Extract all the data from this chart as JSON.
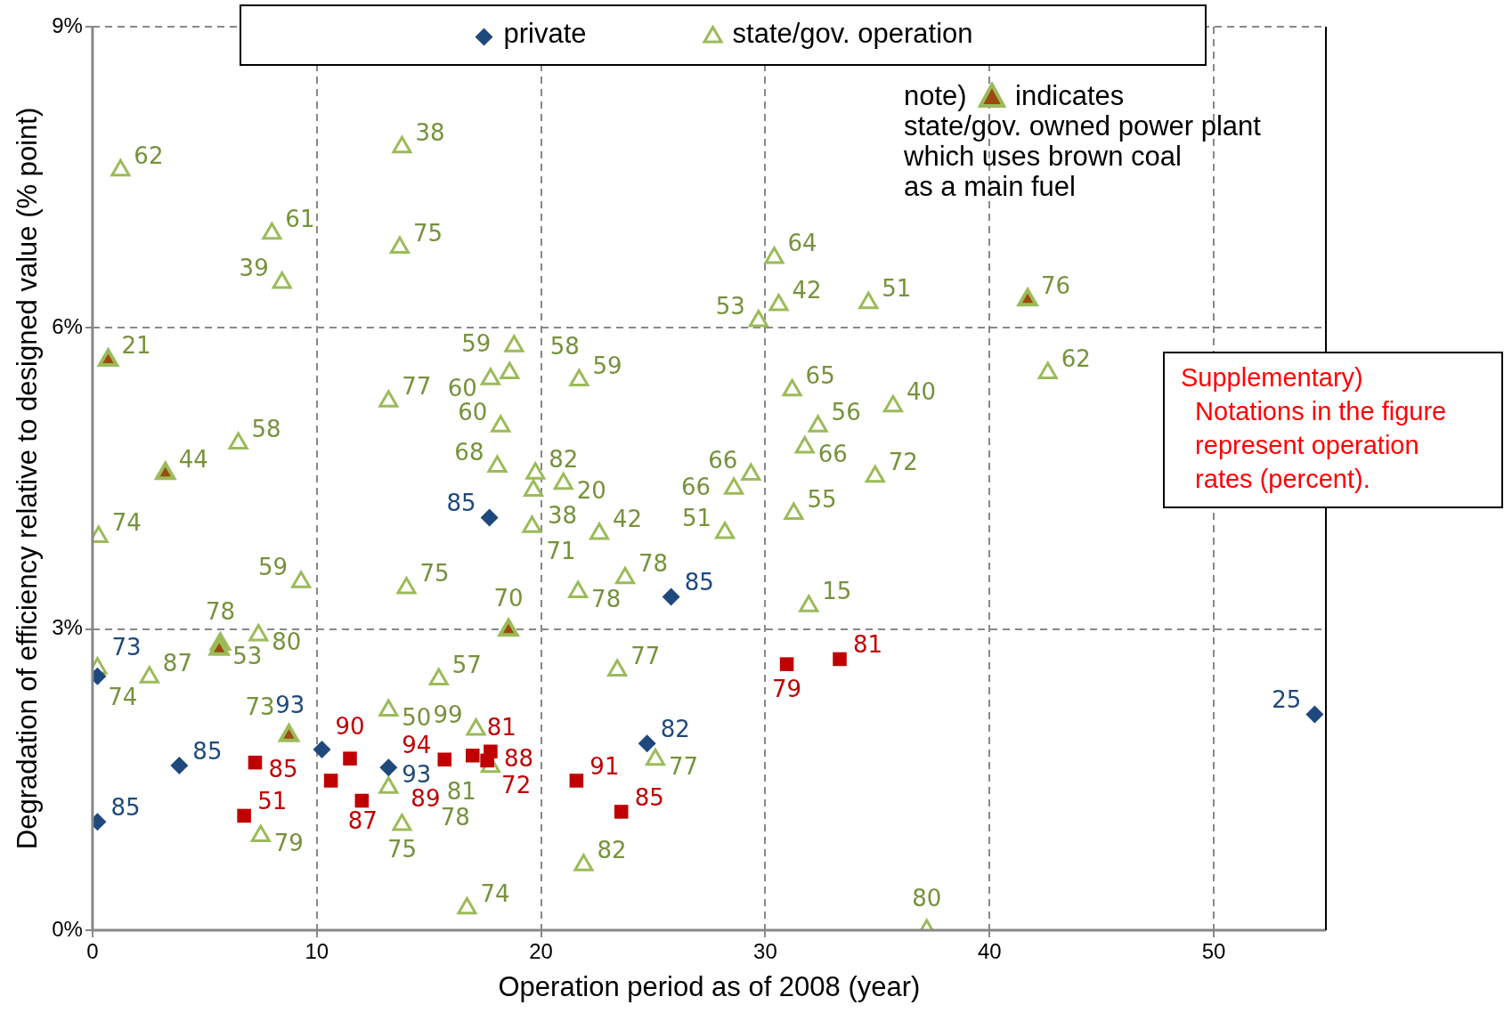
{
  "chart_data": {
    "type": "scatter",
    "xlabel": "Operation period as of 2008 (year)",
    "ylabel": "Degradation of efficiency relative to designed value (% point)",
    "xlim": [
      0,
      55
    ],
    "xticks": [
      0,
      10,
      20,
      30,
      40,
      50
    ],
    "ylim": [
      0,
      9
    ],
    "yticks": [
      {
        "value": 0,
        "label": "0%"
      },
      {
        "value": 3,
        "label": "3%"
      },
      {
        "value": 6,
        "label": "6%"
      },
      {
        "value": 9,
        "label": "9%"
      }
    ],
    "grid": true,
    "legend": "top",
    "annotations": [
      "note)",
      "indicates",
      "state/gov. owned power plant\nwhich uses brown coal\nas a main fuel",
      "Supplementary)\n  Notations in the figure\n  represent operation\n  rates (percent).",
      {
        "text": "85",
        "x": 7.25,
        "y": 1.67
      },
      {
        "text": "51",
        "x": 6.76,
        "y": 1.14
      },
      {
        "text": "87",
        "x": 10.63,
        "y": 1.49
      },
      {
        "text": "90",
        "x": 11.48,
        "y": 1.71
      },
      {
        "text": "89",
        "x": 12.01,
        "y": 1.29
      },
      {
        "text": "94",
        "x": 15.7,
        "y": 1.7
      },
      {
        "text": "81",
        "x": 16.95,
        "y": 1.74
      },
      {
        "text": "88",
        "x": 17.75,
        "y": 1.78
      },
      {
        "text": "72",
        "x": 17.6,
        "y": 1.69
      },
      {
        "text": "91",
        "x": 21.58,
        "y": 1.49
      },
      {
        "text": "85",
        "x": 23.58,
        "y": 1.18
      },
      {
        "text": "79",
        "x": 30.96,
        "y": 2.65
      },
      {
        "text": "81",
        "x": 33.32,
        "y": 2.7
      },
      {
        "text": "73",
        "x": 0.22,
        "y": 2.53
      },
      {
        "text": "85",
        "x": 3.87,
        "y": 1.64
      },
      {
        "text": "85",
        "x": 0.22,
        "y": 1.08
      },
      {
        "text": "93",
        "x": 10.23,
        "y": 1.8
      },
      {
        "text": "93",
        "x": 13.2,
        "y": 1.62
      },
      {
        "text": "85",
        "x": 17.7,
        "y": 4.11
      },
      {
        "text": "85",
        "x": 25.8,
        "y": 3.32
      },
      {
        "text": "82",
        "x": 24.73,
        "y": 1.86
      },
      {
        "text": "25",
        "x": 54.5,
        "y": 2.15
      },
      {
        "text": "62",
        "x": 1.25,
        "y": 7.57
      },
      {
        "text": "38",
        "x": 13.8,
        "y": 7.8
      },
      {
        "text": "61",
        "x": 8.0,
        "y": 6.94
      },
      {
        "text": "75",
        "x": 13.7,
        "y": 6.8
      },
      {
        "text": "39",
        "x": 8.45,
        "y": 6.45
      },
      {
        "text": "64",
        "x": 30.4,
        "y": 6.7
      },
      {
        "text": "42",
        "x": 30.6,
        "y": 6.23
      },
      {
        "text": "53",
        "x": 29.7,
        "y": 6.07
      },
      {
        "text": "51",
        "x": 34.6,
        "y": 6.25
      },
      {
        "text": "62",
        "x": 42.6,
        "y": 5.55
      },
      {
        "text": "59",
        "x": 18.8,
        "y": 5.82
      },
      {
        "text": "60",
        "x": 17.75,
        "y": 5.49
      },
      {
        "text": "58",
        "x": 18.6,
        "y": 5.55
      },
      {
        "text": "77",
        "x": 13.2,
        "y": 5.27
      },
      {
        "text": "59",
        "x": 21.7,
        "y": 5.48
      },
      {
        "text": "60",
        "x": 18.2,
        "y": 5.02
      },
      {
        "text": "58",
        "x": 6.5,
        "y": 4.85
      },
      {
        "text": "68",
        "x": 18.05,
        "y": 4.62
      },
      {
        "text": "82",
        "x": 19.75,
        "y": 4.55
      },
      {
        "text": "20",
        "x": 21.0,
        "y": 4.45
      },
      {
        "text": "38",
        "x": 19.66,
        "y": 4.38
      },
      {
        "text": "71",
        "x": 19.6,
        "y": 4.02
      },
      {
        "text": "42",
        "x": 22.6,
        "y": 3.95
      },
      {
        "text": "78",
        "x": 23.75,
        "y": 3.51
      },
      {
        "text": "78",
        "x": 21.65,
        "y": 3.37
      },
      {
        "text": "51",
        "x": 28.2,
        "y": 3.96
      },
      {
        "text": "66",
        "x": 29.36,
        "y": 4.54
      },
      {
        "text": "66",
        "x": 28.6,
        "y": 4.4
      },
      {
        "text": "65",
        "x": 31.2,
        "y": 5.38
      },
      {
        "text": "56",
        "x": 32.35,
        "y": 5.02
      },
      {
        "text": "66",
        "x": 31.76,
        "y": 4.81
      },
      {
        "text": "40",
        "x": 35.7,
        "y": 5.22
      },
      {
        "text": "72",
        "x": 34.9,
        "y": 4.52
      },
      {
        "text": "55",
        "x": 31.27,
        "y": 4.15
      },
      {
        "text": "15",
        "x": 31.94,
        "y": 3.23
      },
      {
        "text": "74",
        "x": 0.27,
        "y": 3.92
      },
      {
        "text": "59",
        "x": 9.3,
        "y": 3.47
      },
      {
        "text": "75",
        "x": 14.0,
        "y": 3.41
      },
      {
        "text": "80",
        "x": 7.4,
        "y": 2.94
      },
      {
        "text": "74",
        "x": 0.22,
        "y": 2.61
      },
      {
        "text": "87",
        "x": 2.54,
        "y": 2.52
      },
      {
        "text": "57",
        "x": 15.44,
        "y": 2.5
      },
      {
        "text": "50",
        "x": 13.2,
        "y": 2.19
      },
      {
        "text": "99",
        "x": 17.1,
        "y": 2.0
      },
      {
        "text": "81",
        "x": 17.75,
        "y": 1.63
      },
      {
        "text": "78",
        "x": 13.2,
        "y": 1.42
      },
      {
        "text": "75",
        "x": 13.8,
        "y": 1.05
      },
      {
        "text": "79",
        "x": 7.5,
        "y": 0.94
      },
      {
        "text": "77",
        "x": 23.4,
        "y": 2.59
      },
      {
        "text": "77",
        "x": 25.1,
        "y": 1.7
      },
      {
        "text": "82",
        "x": 21.9,
        "y": 0.65
      },
      {
        "text": "74",
        "x": 16.7,
        "y": 0.22
      },
      {
        "text": "80",
        "x": 37.2,
        "y": 0.0
      },
      {
        "text": "21",
        "x": 0.7,
        "y": 5.68
      },
      {
        "text": "44",
        "x": 3.25,
        "y": 4.55
      },
      {
        "text": "78",
        "x": 5.7,
        "y": 2.85
      },
      {
        "text": "53",
        "x": 5.65,
        "y": 2.8
      },
      {
        "text": "73",
        "x": 8.76,
        "y": 1.94
      },
      {
        "text": "70",
        "x": 18.55,
        "y": 2.99
      },
      {
        "text": "76",
        "x": 41.7,
        "y": 6.28
      }
    ],
    "series": [
      {
        "color": "#c00000",
        "marker": "square",
        "x": [
          7.25,
          6.76,
          10.63,
          11.48,
          12.01,
          15.7,
          16.95,
          17.75,
          17.6,
          21.58,
          23.58,
          30.96,
          33.32
        ],
        "values": [
          1.67,
          1.14,
          1.49,
          1.71,
          1.29,
          1.7,
          1.74,
          1.78,
          1.69,
          1.49,
          1.18,
          2.65,
          2.7
        ]
      },
      {
        "name": "private",
        "color": "#1f497d",
        "marker": "diamond",
        "x": [
          0.22,
          3.87,
          0.22,
          10.23,
          13.2,
          17.7,
          25.8,
          24.73,
          54.5
        ],
        "values": [
          2.53,
          1.64,
          1.08,
          1.8,
          1.62,
          4.11,
          3.32,
          1.86,
          2.15
        ]
      },
      {
        "name": "state/gov. operation",
        "color": "#9bbb59",
        "marker": "triangle",
        "x": [
          1.25,
          13.8,
          8.0,
          13.7,
          8.45,
          30.4,
          30.6,
          29.7,
          34.6,
          42.6,
          18.8,
          17.75,
          18.6,
          13.2,
          21.7,
          18.2,
          6.5,
          18.05,
          19.75,
          21.0,
          19.66,
          19.6,
          22.6,
          23.75,
          21.65,
          28.2,
          29.36,
          28.6,
          31.2,
          32.35,
          31.76,
          35.7,
          34.9,
          31.27,
          31.94,
          0.27,
          9.3,
          14.0,
          7.4,
          0.22,
          2.54,
          15.44,
          13.2,
          17.1,
          17.75,
          13.2,
          13.8,
          7.5,
          23.4,
          25.1,
          21.9,
          16.7,
          37.2
        ],
        "values": [
          7.57,
          7.8,
          6.94,
          6.8,
          6.45,
          6.7,
          6.23,
          6.07,
          6.25,
          5.55,
          5.82,
          5.49,
          5.55,
          5.27,
          5.48,
          5.02,
          4.85,
          4.62,
          4.55,
          4.45,
          4.38,
          4.02,
          3.95,
          3.51,
          3.37,
          3.96,
          4.54,
          4.4,
          5.38,
          5.02,
          4.81,
          5.22,
          4.52,
          4.15,
          3.23,
          3.92,
          3.47,
          3.41,
          2.94,
          2.61,
          2.52,
          2.5,
          2.19,
          2.0,
          1.63,
          1.42,
          1.05,
          0.94,
          2.59,
          1.7,
          0.65,
          0.22,
          0.0
        ]
      },
      {
        "color": "#9c4a10",
        "marker": "triangle",
        "x": [
          0.7,
          3.25,
          5.7,
          5.65,
          8.76,
          18.55,
          41.7
        ],
        "values": [
          5.68,
          4.55,
          2.85,
          2.8,
          1.94,
          2.99,
          6.28
        ]
      }
    ]
  }
}
